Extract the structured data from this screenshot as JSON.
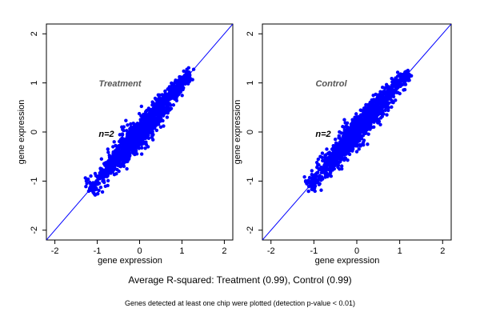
{
  "chart_data": [
    {
      "type": "scatter",
      "title": "",
      "annotation_label": "Treatment",
      "n_label": "n=2",
      "xlabel": "gene expression",
      "ylabel": "gene expression",
      "xlim": [
        -2.2,
        2.2
      ],
      "ylim": [
        -2.2,
        2.2
      ],
      "ticks": [
        -2,
        -1,
        0,
        1,
        2
      ],
      "reference_line": "y = x",
      "point_color": "#0000ff",
      "line_color": "#0000ff",
      "series": [
        {
          "points_center_line": [
            [
              -1.1,
              -1.12
            ],
            [
              -0.8,
              -0.82
            ],
            [
              -0.5,
              -0.52
            ],
            [
              -0.2,
              -0.22
            ],
            [
              0.0,
              -0.02
            ],
            [
              0.3,
              0.3
            ],
            [
              0.6,
              0.6
            ],
            [
              0.9,
              0.92
            ],
            [
              1.15,
              1.15
            ]
          ],
          "outliers": [
            [
              -0.75,
              -0.35
            ],
            [
              -0.6,
              -0.2
            ],
            [
              -0.4,
              0.05
            ],
            [
              -0.2,
              0.1
            ],
            [
              0.1,
              0.35
            ],
            [
              0.3,
              0.55
            ],
            [
              -0.3,
              -0.75
            ],
            [
              0.05,
              -0.45
            ],
            [
              0.2,
              -0.3
            ],
            [
              0.5,
              0.1
            ],
            [
              -0.55,
              -0.85
            ],
            [
              0.65,
              0.3
            ],
            [
              -0.9,
              -0.55
            ],
            [
              0.8,
              0.55
            ]
          ]
        }
      ]
    },
    {
      "type": "scatter",
      "title": "",
      "annotation_label": "Control",
      "n_label": "n=2",
      "xlabel": "gene expression",
      "ylabel": "gene expression",
      "xlim": [
        -2.2,
        2.2
      ],
      "ylim": [
        -2.2,
        2.2
      ],
      "ticks": [
        -2,
        -1,
        0,
        1,
        2
      ],
      "reference_line": "y = x",
      "point_color": "#0000ff",
      "line_color": "#0000ff",
      "series": [
        {
          "points_center_line": [
            [
              -1.05,
              -1.05
            ],
            [
              -0.8,
              -0.78
            ],
            [
              -0.5,
              -0.5
            ],
            [
              -0.2,
              -0.2
            ],
            [
              0.0,
              0.02
            ],
            [
              0.3,
              0.32
            ],
            [
              0.6,
              0.62
            ],
            [
              0.9,
              0.92
            ],
            [
              1.15,
              1.15
            ]
          ],
          "outliers": [
            [
              -0.7,
              -0.35
            ],
            [
              -0.5,
              -0.15
            ],
            [
              -0.3,
              0.1
            ],
            [
              -0.1,
              0.25
            ],
            [
              0.2,
              0.5
            ],
            [
              0.35,
              0.65
            ],
            [
              -0.35,
              -0.75
            ],
            [
              0.0,
              -0.4
            ],
            [
              0.25,
              -0.25
            ],
            [
              0.55,
              0.15
            ],
            [
              -0.6,
              -0.9
            ],
            [
              0.7,
              0.35
            ],
            [
              -0.85,
              -0.5
            ],
            [
              0.85,
              0.6
            ]
          ]
        }
      ]
    }
  ],
  "captions": {
    "main": "Average R-squared: Treatment (0.99), Control (0.99)",
    "sub": "Genes detected at least one chip were plotted (detection p-value < 0.01)"
  }
}
